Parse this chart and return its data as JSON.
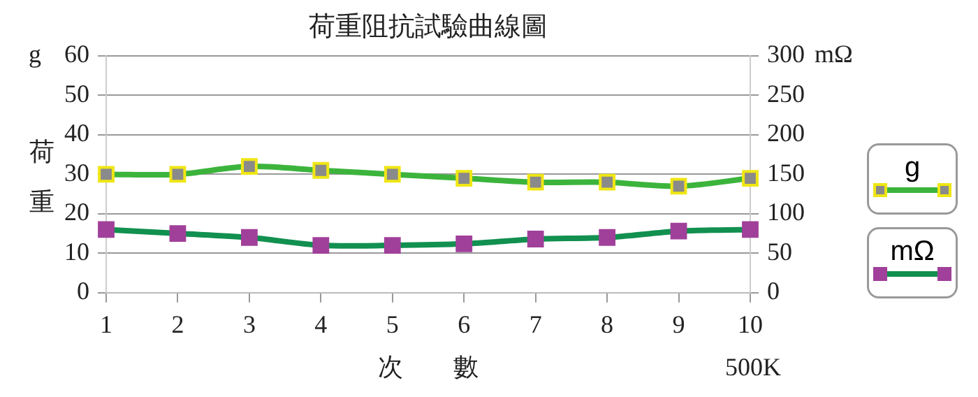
{
  "chart_data": {
    "type": "line",
    "title": "荷重阻抗試驗曲線圖",
    "xlabel": "次　　數",
    "ylabel": "荷重",
    "y2label": "mΩ",
    "annotations": [
      "g",
      "500K"
    ],
    "categories": [
      "1",
      "2",
      "3",
      "4",
      "5",
      "6",
      "7",
      "8",
      "9",
      "10"
    ],
    "series": [
      {
        "name": "g",
        "color": "#3cb43c",
        "values": [
          30,
          30,
          32,
          31,
          30,
          29,
          28,
          28,
          27,
          29
        ]
      },
      {
        "name": "mΩ",
        "color": "#119050",
        "axis": "y2",
        "values": [
          80,
          75,
          70,
          60,
          60,
          62,
          68,
          70,
          78,
          80
        ]
      }
    ],
    "ylim": [
      0,
      60
    ],
    "yticks": [
      0,
      10,
      20,
      30,
      40,
      50,
      60
    ],
    "y2lim": [
      0,
      300
    ],
    "y2ticks": [
      0,
      50,
      100,
      150,
      200,
      250,
      300
    ],
    "grid": "y",
    "legend": "right",
    "marker": "square",
    "line_style": "solid"
  }
}
